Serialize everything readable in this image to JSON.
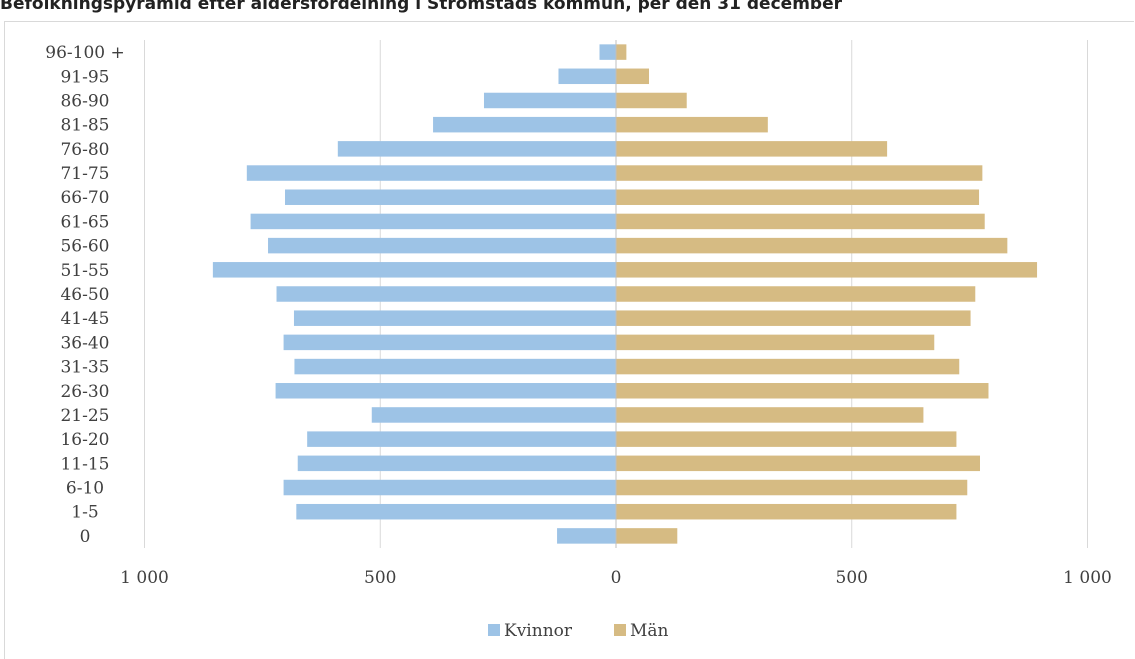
{
  "chart_data": {
    "type": "bar",
    "orientation": "horizontal",
    "title": "Befolkningspyramid efter åldersfördelning i Strömstads kommun, per den 31 december",
    "categories": [
      "0",
      "1-5",
      "6-10",
      "11-15",
      "16-20",
      "21-25",
      "26-30",
      "31-35",
      "36-40",
      "41-45",
      "46-50",
      "51-55",
      "56-60",
      "61-65",
      "66-70",
      "71-75",
      "76-80",
      "81-85",
      "86-90",
      "91-95",
      "96-100 +"
    ],
    "series": [
      {
        "name": "Kvinnor",
        "color": "#9dc3e6",
        "values": [
          125,
          678,
          705,
          675,
          655,
          518,
          722,
          682,
          705,
          683,
          720,
          855,
          738,
          775,
          702,
          783,
          590,
          388,
          280,
          122,
          35
        ]
      },
      {
        "name": "Män",
        "color": "#d6bb83",
        "values": [
          130,
          722,
          745,
          772,
          722,
          652,
          790,
          728,
          675,
          752,
          762,
          893,
          830,
          782,
          770,
          777,
          575,
          322,
          150,
          70,
          22
        ]
      }
    ],
    "xlim": [
      -1000,
      1000
    ],
    "xticks": [
      -1000,
      -500,
      0,
      500,
      1000
    ],
    "xtick_labels": [
      "1 000",
      "500",
      "0",
      "500",
      "1 000"
    ],
    "grid": true,
    "legend": "bottom"
  }
}
